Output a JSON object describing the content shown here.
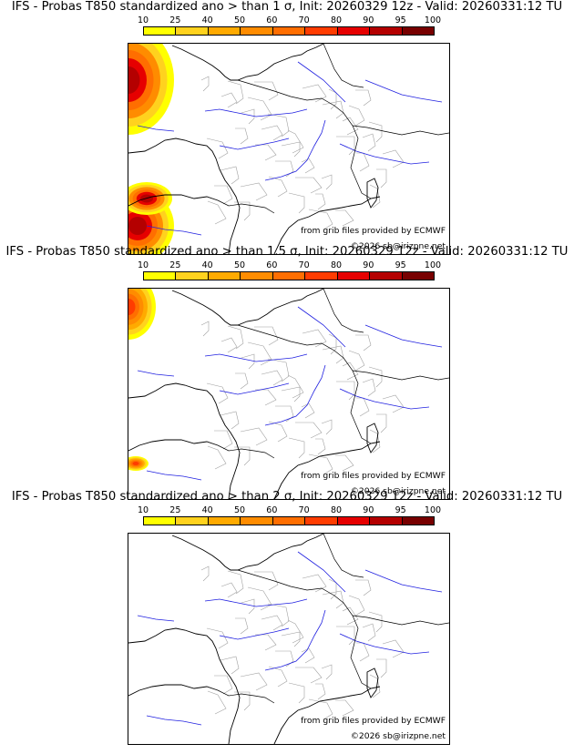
{
  "panels": [
    {
      "title": "IFS - Probas T850  standardized ano > than 1 σ, Init: 20260329 12z - Valid: 20260331:12 TU"
    },
    {
      "title": "IFS - Probas T850  standardized ano > than 1.5 σ, Init: 20260329 12z - Valid: 20260331:12 TU"
    },
    {
      "title": "IFS - Probas T850  standardized ano > than 2 σ, Init: 20260329 12z - Valid: 20260331:12 TU"
    }
  ],
  "colorbar": {
    "ticks": [
      "10",
      "25",
      "40",
      "50",
      "60",
      "70",
      "80",
      "90",
      "95",
      "100"
    ],
    "colors": [
      "#ffff00",
      "#ffd21e",
      "#ffaa00",
      "#ff8c00",
      "#ff6e00",
      "#ff3c00",
      "#e60000",
      "#b40000",
      "#780000"
    ]
  },
  "credits": {
    "source": "from grib files provided by ECMWF",
    "copyright": "©2026 sb@irizpne.net"
  },
  "colors": {
    "coast": "#000000",
    "rivers": "#2020e0",
    "borders": "#a0a0a0"
  }
}
